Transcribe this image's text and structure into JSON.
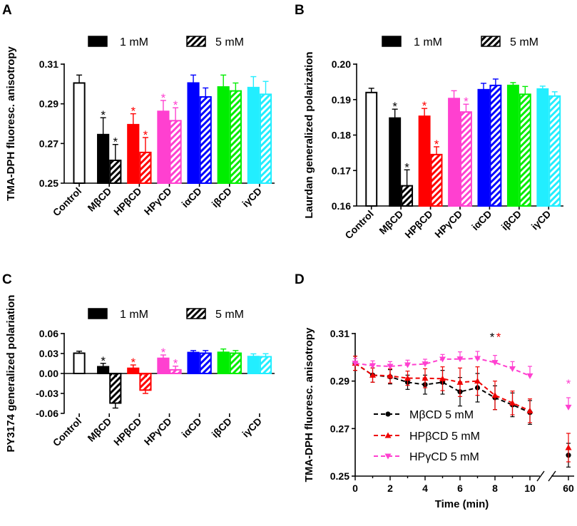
{
  "chart_data": [
    {
      "type": "bar",
      "panel_letter": "A",
      "ylabel": "TMA-DPH fluoresc. anisotropy",
      "ylim": [
        0.25,
        0.31
      ],
      "yticks": [
        "0.25",
        "0.27",
        "0.29",
        "0.31"
      ],
      "legend": {
        "solid_label": "1 mM",
        "hatched_label": "5 mM"
      },
      "categories": [
        "Control",
        "MβCD",
        "HPβCD",
        "HPγCD",
        "iαCD",
        "iβCD",
        "iγCD"
      ],
      "colors": [
        "#000000",
        "#000000",
        "#ff0000",
        "#ff40d0",
        "#0000ff",
        "#00ee00",
        "#22eeff"
      ],
      "series": [
        {
          "name": "1 mM",
          "values": [
            0.3005,
            0.2745,
            0.2795,
            0.2862,
            0.3005,
            0.2985,
            0.2982
          ],
          "errors": [
            0.004,
            0.0085,
            0.0055,
            0.0055,
            0.004,
            0.006,
            0.0055
          ],
          "sig": [
            false,
            true,
            true,
            true,
            false,
            false,
            false
          ]
        },
        {
          "name": "5 mM",
          "values": [
            null,
            0.2615,
            0.2655,
            0.2815,
            0.2935,
            0.2965,
            0.2948
          ],
          "errors": [
            null,
            0.008,
            0.0075,
            0.0065,
            0.0045,
            0.004,
            0.0065
          ],
          "sig": [
            false,
            true,
            true,
            true,
            false,
            false,
            false
          ]
        }
      ],
      "sig_mark": "*"
    },
    {
      "type": "bar",
      "panel_letter": "B",
      "ylabel": "Laurdan generalized polarization",
      "ylim": [
        0.16,
        0.2
      ],
      "yticks": [
        "0.16",
        "0.17",
        "0.18",
        "0.19",
        "0.20"
      ],
      "legend": {
        "solid_label": "1 mM",
        "hatched_label": "5 mM"
      },
      "categories": [
        "Control",
        "MβCD",
        "HPβCD",
        "HPγCD",
        "iαCD",
        "iβCD",
        "iγCD"
      ],
      "colors": [
        "#000000",
        "#000000",
        "#ff0000",
        "#ff40d0",
        "#0000ff",
        "#00ee00",
        "#22eeff"
      ],
      "series": [
        {
          "name": "1 mM",
          "values": [
            0.192,
            0.1848,
            0.1853,
            0.1903,
            0.1928,
            0.194,
            0.193
          ],
          "errors": [
            0.0012,
            0.0025,
            0.0022,
            0.0022,
            0.0018,
            0.0008,
            0.0008
          ],
          "sig": [
            false,
            true,
            true,
            false,
            false,
            false,
            false
          ]
        },
        {
          "name": "5 mM",
          "values": [
            null,
            0.1657,
            0.1745,
            0.1865,
            0.194,
            0.1915,
            0.191
          ],
          "errors": [
            null,
            0.0045,
            0.0022,
            0.0022,
            0.0018,
            0.0022,
            0.0012
          ],
          "sig": [
            false,
            true,
            true,
            true,
            false,
            false,
            false
          ]
        }
      ],
      "sig_mark": "*"
    },
    {
      "type": "bar",
      "panel_letter": "C",
      "ylabel": "PY3174 generalized polariation",
      "ylim": [
        -0.06,
        0.06
      ],
      "yticks": [
        "-0.06",
        "-0.03",
        "0.00",
        "0.03",
        "0.06"
      ],
      "legend": {
        "solid_label": "1 mM",
        "hatched_label": "5 mM"
      },
      "categories": [
        "Control",
        "MβCD",
        "HPβCD",
        "HPγCD",
        "iαCD",
        "iβCD",
        "iγCD"
      ],
      "colors": [
        "#000000",
        "#000000",
        "#ff0000",
        "#ff40d0",
        "#0000ff",
        "#00ee00",
        "#22eeff"
      ],
      "series": [
        {
          "name": "1 mM",
          "values": [
            0.0305,
            0.0102,
            0.0078,
            0.0228,
            0.0315,
            0.0318,
            0.0255
          ],
          "errors": [
            0.003,
            0.005,
            0.005,
            0.005,
            0.003,
            0.005,
            0.004
          ],
          "sig": [
            false,
            true,
            true,
            true,
            false,
            false,
            false
          ]
        },
        {
          "name": "5 mM",
          "values": [
            null,
            -0.0445,
            -0.025,
            0.0055,
            0.0305,
            0.0305,
            0.0252
          ],
          "errors": [
            null,
            0.0075,
            0.005,
            0.0055,
            0.004,
            0.004,
            0.0045
          ],
          "sig": [
            false,
            true,
            true,
            true,
            false,
            false,
            false
          ]
        }
      ],
      "sig_mark": "*"
    },
    {
      "type": "line",
      "panel_letter": "D",
      "ylabel": "TMA-DPH fluoresc. anisotropy",
      "xlabel": "Time (min)",
      "ylim": [
        0.25,
        0.31
      ],
      "yticks": [
        "0.25",
        "0.27",
        "0.29",
        "0.31"
      ],
      "xticks": [
        "0",
        "2",
        "4",
        "6",
        "8",
        "10",
        "60"
      ],
      "x": [
        0,
        1,
        2,
        3,
        4,
        5,
        6,
        7,
        8,
        9,
        10,
        60
      ],
      "series": [
        {
          "name": "MβCD 5 mM",
          "color": "#000000",
          "marker": "circle",
          "values": [
            0.2975,
            0.2925,
            0.2918,
            0.2895,
            0.2885,
            0.2895,
            0.2855,
            0.2872,
            0.283,
            0.28,
            0.2768,
            0.2588
          ],
          "errors": [
            0.003,
            0.003,
            0.003,
            0.003,
            0.004,
            0.005,
            0.006,
            0.006,
            0.005,
            0.005,
            0.005,
            0.005
          ]
        },
        {
          "name": "HPβCD 5 mM",
          "color": "#ee0000",
          "marker": "triangle-up",
          "values": [
            0.2975,
            0.2925,
            0.2922,
            0.2912,
            0.2912,
            0.291,
            0.2895,
            0.29,
            0.284,
            0.2808,
            0.2775,
            0.262
          ],
          "errors": [
            0.003,
            0.003,
            0.003,
            0.003,
            0.004,
            0.005,
            0.006,
            0.006,
            0.006,
            0.005,
            0.005,
            0.006
          ]
        },
        {
          "name": "HPγCD 5 mM",
          "color": "#ff40d0",
          "marker": "triangle-down",
          "values": [
            0.2975,
            0.2965,
            0.2962,
            0.2968,
            0.2972,
            0.2992,
            0.2993,
            0.2995,
            0.2978,
            0.2952,
            0.2922,
            0.279
          ],
          "errors": [
            0.002,
            0.002,
            0.002,
            0.002,
            0.002,
            0.002,
            0.003,
            0.003,
            0.003,
            0.003,
            0.004,
            0.004
          ]
        }
      ],
      "annotations": [
        {
          "x": 8,
          "text": "*",
          "color": "#000000"
        },
        {
          "x": 8,
          "text": "*",
          "color": "#ee0000"
        },
        {
          "x": 60,
          "text": "*",
          "color": "#ff40d0"
        }
      ]
    }
  ]
}
